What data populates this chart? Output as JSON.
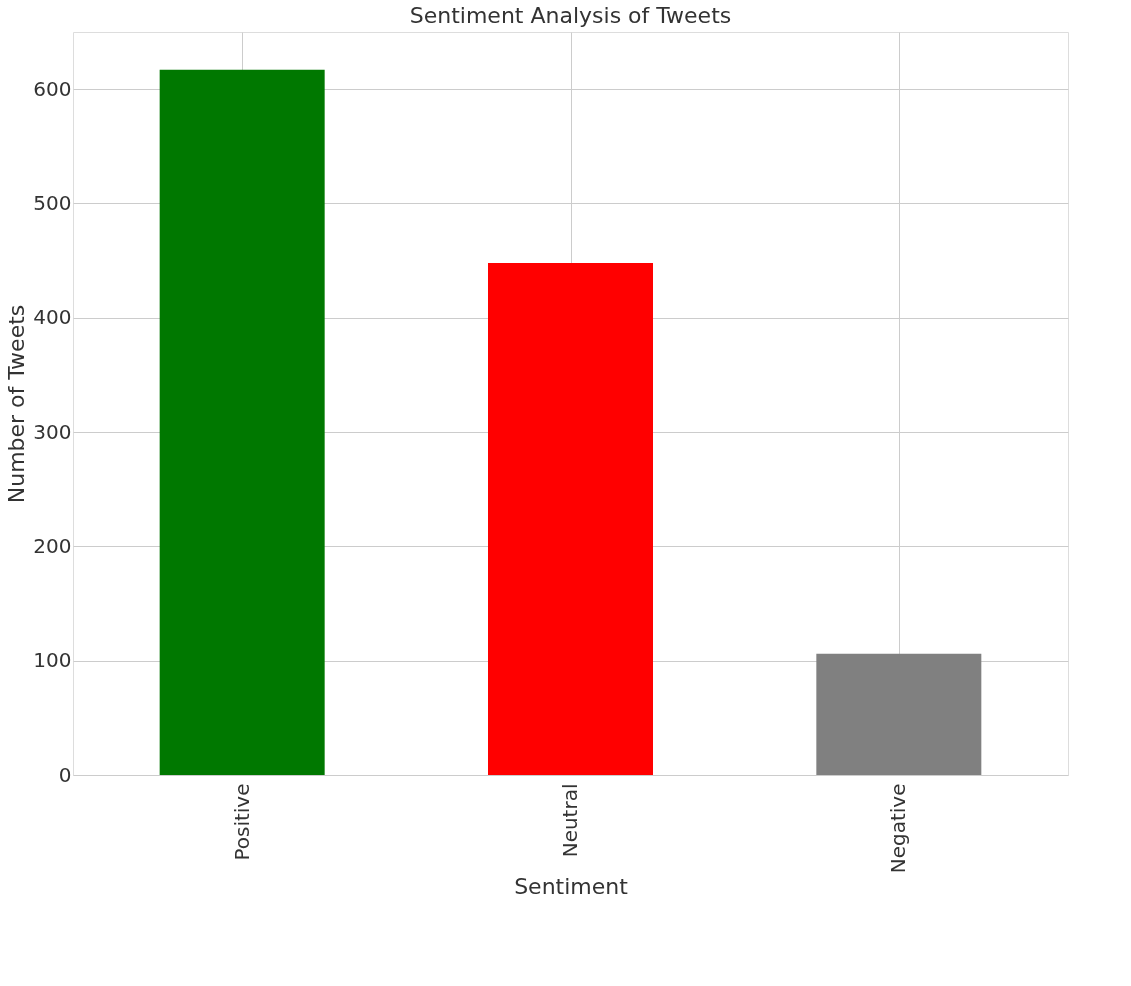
{
  "chart_data": {
    "type": "bar",
    "title": "Sentiment Analysis of Tweets",
    "xlabel": "Sentiment",
    "ylabel": "Number of Tweets",
    "categories": [
      "Positive",
      "Neutral",
      "Negative"
    ],
    "values": [
      617,
      448,
      106
    ],
    "colors": [
      "#007800",
      "#ff0000",
      "#808080"
    ],
    "ylim": [
      0,
      650
    ],
    "yticks": [
      0,
      100,
      200,
      300,
      400,
      500,
      600
    ],
    "grid": true
  }
}
